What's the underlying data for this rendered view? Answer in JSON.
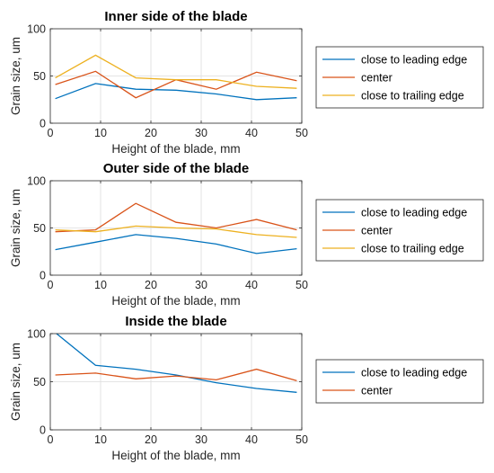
{
  "chart_data": [
    {
      "type": "line",
      "title": "Inner side of the blade",
      "xlabel": "Height of the blade, mm",
      "ylabel": "Grain size, um",
      "xlim": [
        0,
        50
      ],
      "ylim": [
        0,
        100
      ],
      "xticks": [
        0,
        10,
        20,
        30,
        40,
        50
      ],
      "yticks": [
        0,
        50,
        100
      ],
      "grid": true,
      "legend_position": "right",
      "x": [
        1,
        9,
        17,
        25,
        33,
        41,
        49
      ],
      "series": [
        {
          "name": "close to leading edge",
          "color": "#0072BD",
          "values": [
            26,
            42,
            36,
            35,
            31,
            25,
            27
          ]
        },
        {
          "name": "center",
          "color": "#D95319",
          "values": [
            41,
            55,
            27,
            46,
            36,
            54,
            45
          ]
        },
        {
          "name": "close to trailing edge",
          "color": "#EDB120",
          "values": [
            48,
            72,
            48,
            46,
            46,
            39,
            37
          ]
        }
      ]
    },
    {
      "type": "line",
      "title": "Outer side of the blade",
      "xlabel": "Height of the blade, mm",
      "ylabel": "Grain size, um",
      "xlim": [
        0,
        50
      ],
      "ylim": [
        0,
        100
      ],
      "xticks": [
        0,
        10,
        20,
        30,
        40,
        50
      ],
      "yticks": [
        0,
        50,
        100
      ],
      "grid": true,
      "legend_position": "right",
      "x": [
        1,
        9,
        17,
        25,
        33,
        41,
        49
      ],
      "series": [
        {
          "name": "close to leading edge",
          "color": "#0072BD",
          "values": [
            27,
            35,
            43,
            39,
            33,
            23,
            28
          ]
        },
        {
          "name": "center",
          "color": "#D95319",
          "values": [
            46,
            48,
            76,
            56,
            50,
            59,
            48
          ]
        },
        {
          "name": "close to trailing edge",
          "color": "#EDB120",
          "values": [
            48,
            46,
            52,
            50,
            49,
            43,
            40
          ]
        }
      ]
    },
    {
      "type": "line",
      "title": "Inside the blade",
      "xlabel": "Height of the blade, mm",
      "ylabel": "Grain size, um",
      "xlim": [
        0,
        50
      ],
      "ylim": [
        0,
        100
      ],
      "xticks": [
        0,
        10,
        20,
        30,
        40,
        50
      ],
      "yticks": [
        0,
        50,
        100
      ],
      "grid": true,
      "legend_position": "right",
      "x": [
        1,
        9,
        17,
        25,
        33,
        41,
        49
      ],
      "series": [
        {
          "name": "close to leading edge",
          "color": "#0072BD",
          "values": [
            101,
            67,
            63,
            57,
            49,
            43,
            39
          ]
        },
        {
          "name": "center",
          "color": "#D95319",
          "values": [
            57,
            59,
            53,
            56,
            52,
            63,
            51
          ]
        }
      ]
    }
  ]
}
